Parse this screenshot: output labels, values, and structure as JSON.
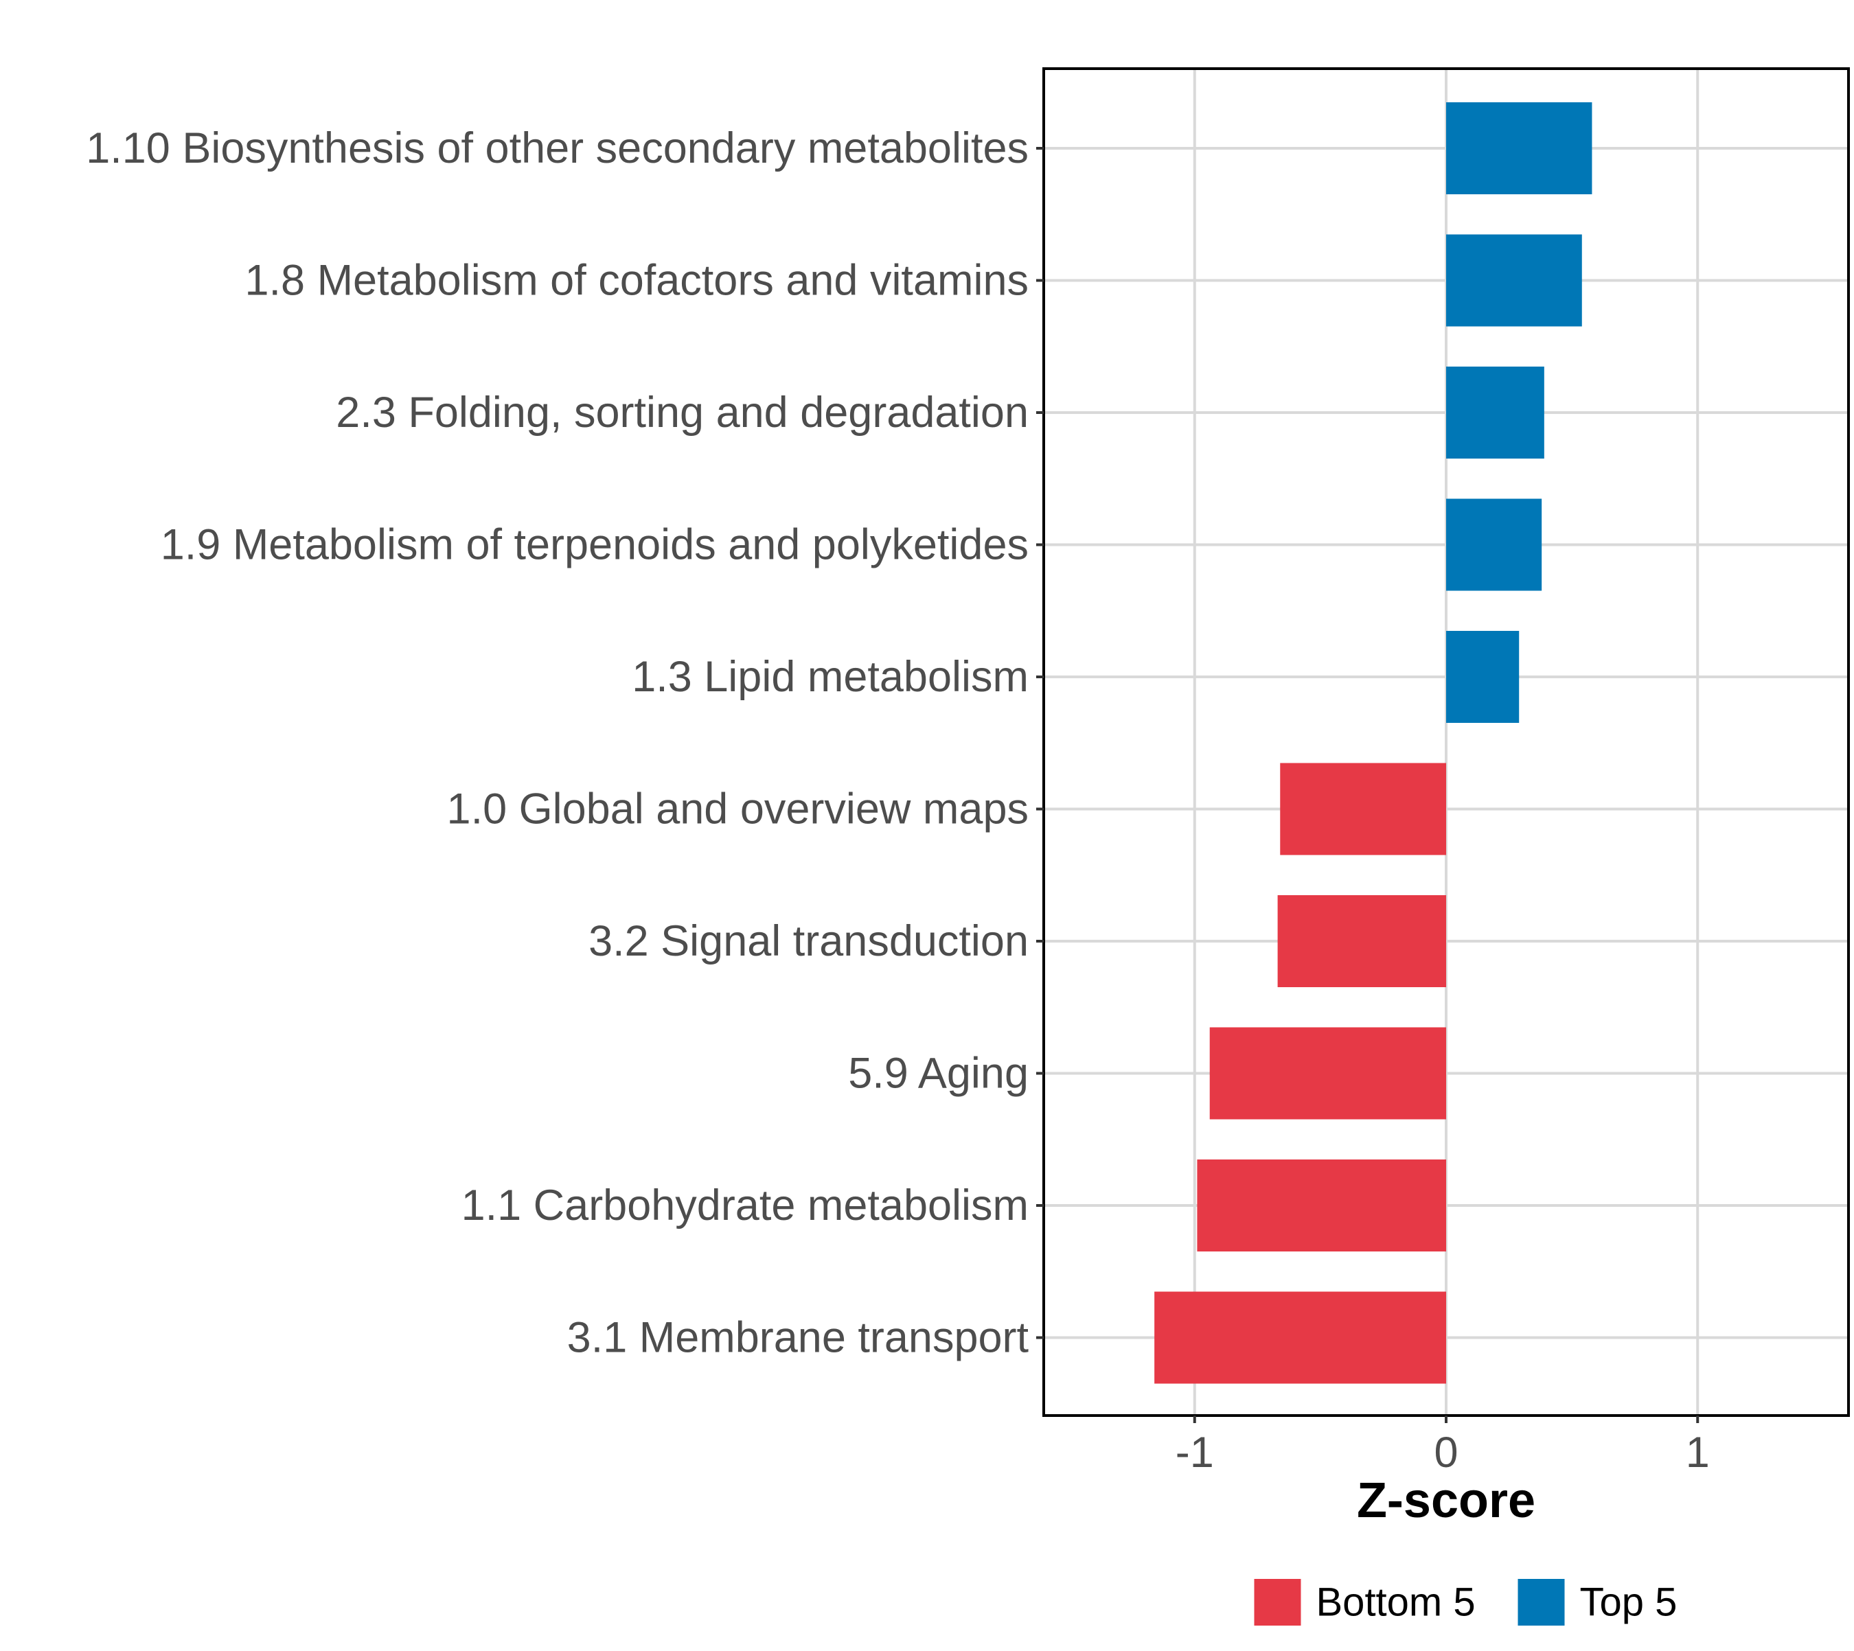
{
  "chart_data": {
    "type": "bar",
    "orientation": "horizontal",
    "title": "",
    "xlabel": "Z-score",
    "ylabel": "",
    "xlim": [
      -1.6,
      1.6
    ],
    "xticks": [
      -1,
      0,
      1
    ],
    "grid": true,
    "legend_position": "bottom",
    "categories": [
      "1.10 Biosynthesis of other secondary metabolites",
      "1.8 Metabolism of cofactors and vitamins",
      "2.3 Folding, sorting and degradation",
      "1.9 Metabolism of terpenoids and polyketides",
      "1.3 Lipid metabolism",
      "1.0 Global and overview maps",
      "3.2 Signal transduction",
      "5.9 Aging",
      "1.1 Carbohydrate metabolism",
      "3.1 Membrane transport"
    ],
    "values": [
      0.58,
      0.54,
      0.39,
      0.38,
      0.29,
      -0.66,
      -0.67,
      -0.94,
      -0.99,
      -1.16
    ],
    "groups": [
      "Top 5",
      "Top 5",
      "Top 5",
      "Top 5",
      "Top 5",
      "Bottom 5",
      "Bottom 5",
      "Bottom 5",
      "Bottom 5",
      "Bottom 5"
    ],
    "legend": [
      {
        "name": "Bottom 5",
        "color": "#E63946"
      },
      {
        "name": "Top 5",
        "color": "#0077B6"
      }
    ],
    "colors": {
      "Top 5": "#0077B6",
      "Bottom 5": "#E63946",
      "grid": "#d9d9d9",
      "frame": "#000000"
    }
  }
}
